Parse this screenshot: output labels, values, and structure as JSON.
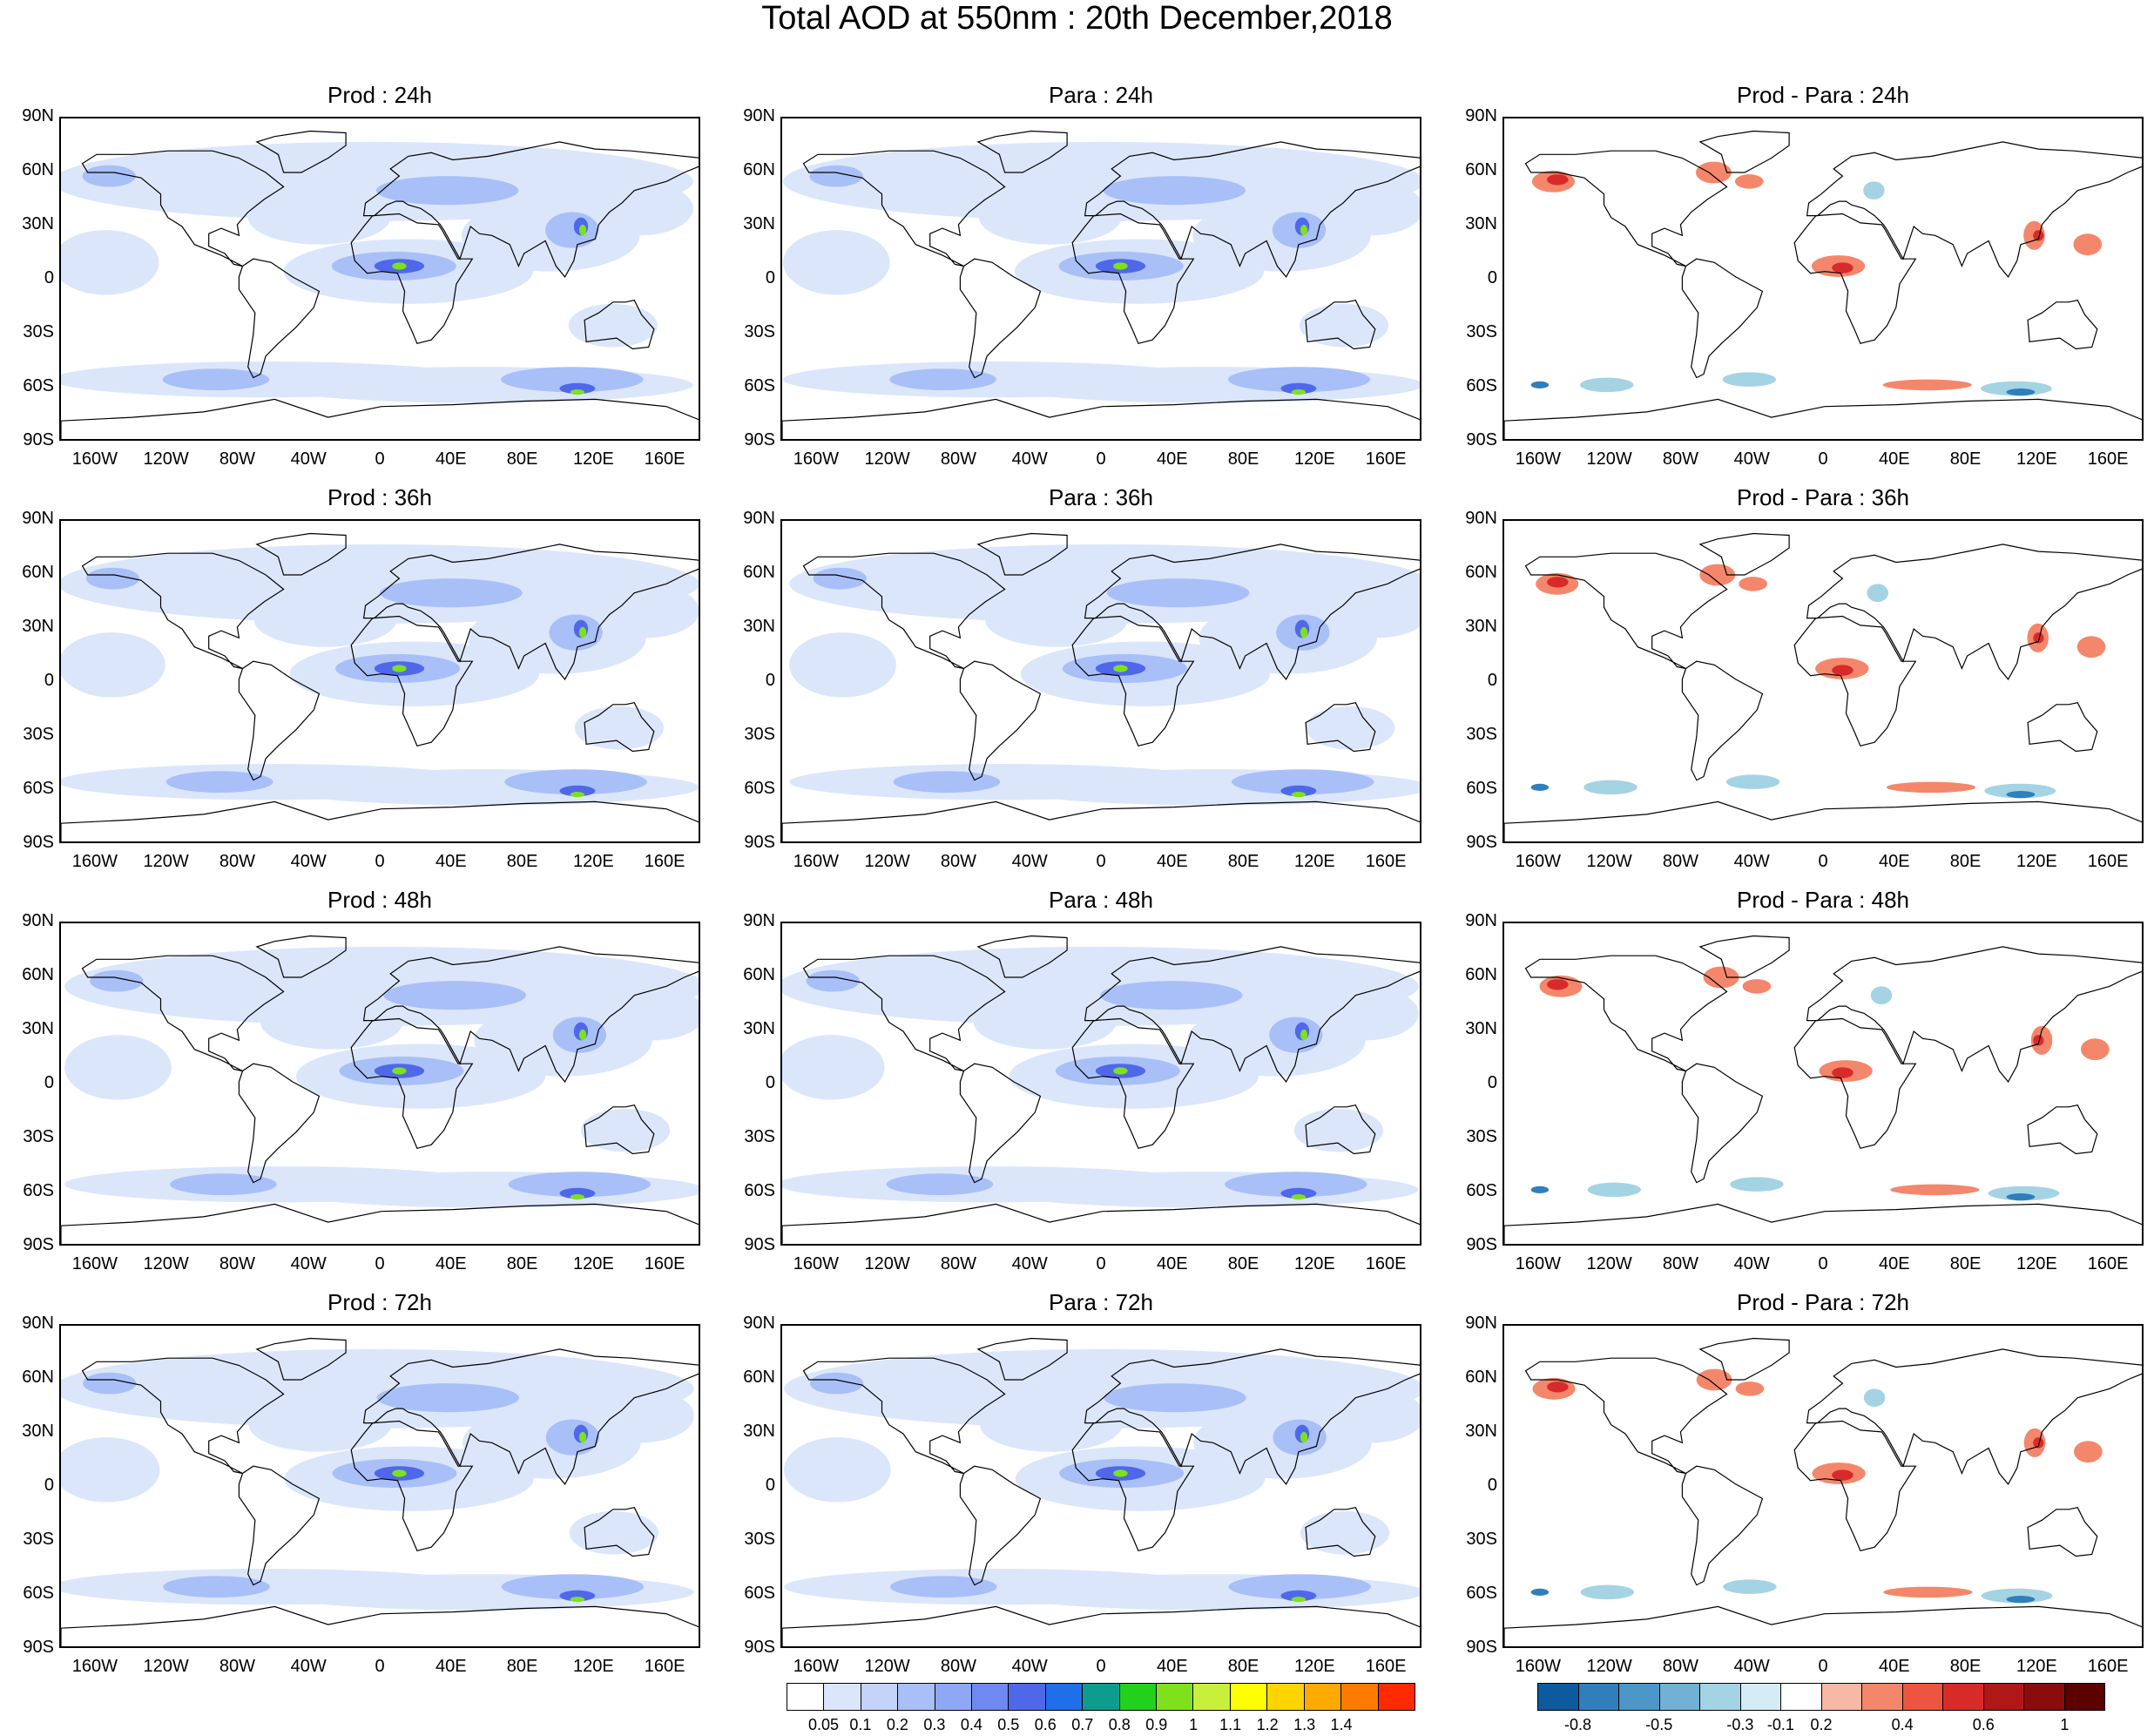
{
  "title": "Total AOD at 550nm : 20th December,2018",
  "panel_titles": [
    [
      "Prod : 24h",
      "Para : 24h",
      "Prod - Para : 24h"
    ],
    [
      "Prod : 36h",
      "Para : 36h",
      "Prod - Para : 36h"
    ],
    [
      "Prod : 48h",
      "Para : 48h",
      "Prod - Para : 48h"
    ],
    [
      "Prod : 72h",
      "Para : 72h",
      "Prod - Para : 72h"
    ]
  ],
  "lat_ticks": [
    "90N",
    "60N",
    "30N",
    "0",
    "30S",
    "60S",
    "90S"
  ],
  "lon_ticks": [
    "160W",
    "120W",
    "80W",
    "40W",
    "0",
    "40E",
    "80E",
    "120E",
    "160E"
  ],
  "aod_colorbar": {
    "labels": [
      "0.05",
      "0.1",
      "0.2",
      "0.3",
      "0.4",
      "0.5",
      "0.6",
      "0.7",
      "0.8",
      "0.9",
      "1",
      "1.1",
      "1.2",
      "1.3",
      "1.4"
    ],
    "colors": [
      "#ffffff",
      "#dce6fb",
      "#c3d3fa",
      "#a9bff8",
      "#8fa8f5",
      "#6f89f0",
      "#4f68ea",
      "#1f6fe8",
      "#0e9c8e",
      "#22d11b",
      "#7fe11c",
      "#c8f03a",
      "#ffff00",
      "#ffd400",
      "#ffaa00",
      "#ff7a00",
      "#ff2a00"
    ]
  },
  "diff_colorbar": {
    "labels": [
      "-0.8",
      "-0.5",
      "-0.3",
      "-0.1",
      "0.2",
      "0.4",
      "0.6",
      "1"
    ],
    "colors": [
      "#0b5b9e",
      "#2f7fbb",
      "#4d97c8",
      "#72b1d4",
      "#a4d3e4",
      "#d4edf4",
      "#ffffff",
      "#f7b8a6",
      "#f4876b",
      "#ee5540",
      "#d92a2a",
      "#b01818",
      "#8a0c0c",
      "#5c0000"
    ]
  },
  "map_colors": {
    "coast": "#000000",
    "aod_low": "#dce6fb",
    "aod_mid": "#a9bff8",
    "aod_high": "#4f68ea",
    "aod_peak": "#7fe11c",
    "diff_pos": "#f4876b",
    "diff_pos_strong": "#d92a2a",
    "diff_neg": "#a4d3e4",
    "diff_neg_strong": "#2f7fbb"
  }
}
